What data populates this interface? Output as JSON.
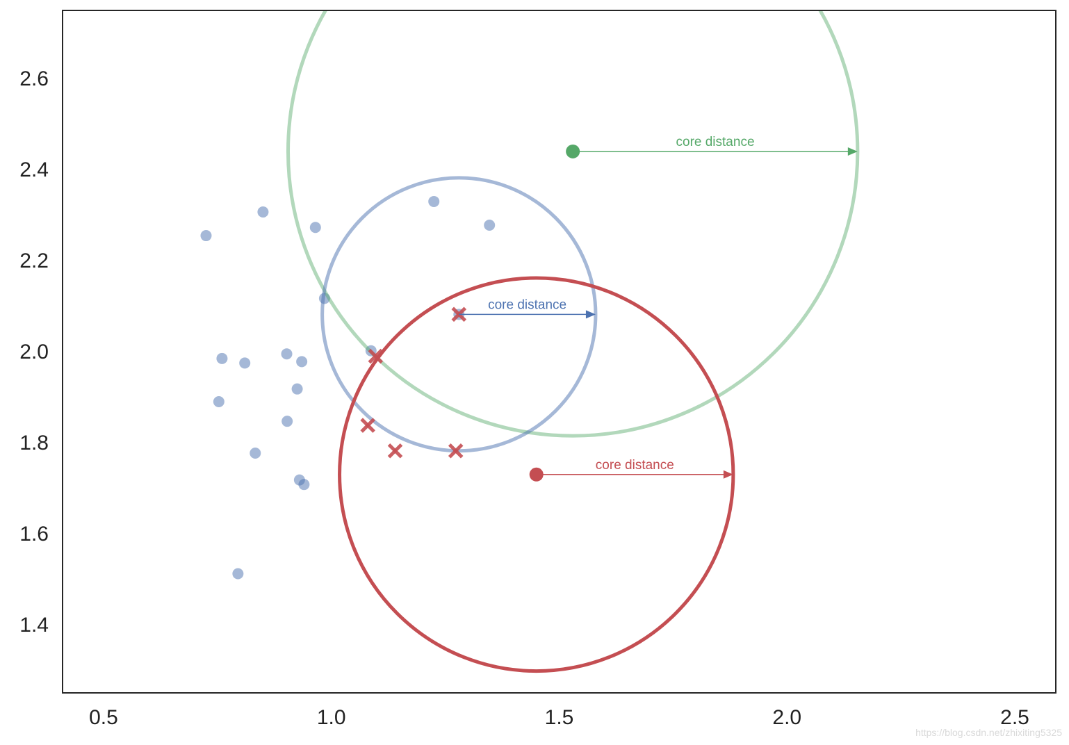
{
  "chart_data": {
    "type": "scatter",
    "title": "",
    "xlabel": "",
    "ylabel": "",
    "xlim": [
      0.41,
      2.59
    ],
    "ylim": [
      1.25,
      2.75
    ],
    "xticks": [
      0.5,
      1.0,
      1.5,
      2.0,
      2.5
    ],
    "yticks": [
      1.4,
      1.6,
      1.8,
      2.0,
      2.2,
      2.4,
      2.6
    ],
    "grid": false,
    "colors": {
      "blue": "#4c72b0",
      "green": "#55a868",
      "red": "#c44e52",
      "axis": "#262626"
    },
    "points": [
      {
        "x": 0.725,
        "y": 2.255
      },
      {
        "x": 0.85,
        "y": 2.307
      },
      {
        "x": 0.965,
        "y": 2.273
      },
      {
        "x": 1.225,
        "y": 2.33
      },
      {
        "x": 1.347,
        "y": 2.278
      },
      {
        "x": 0.985,
        "y": 2.117
      },
      {
        "x": 0.76,
        "y": 1.985
      },
      {
        "x": 0.81,
        "y": 1.975
      },
      {
        "x": 0.902,
        "y": 1.995
      },
      {
        "x": 0.935,
        "y": 1.978
      },
      {
        "x": 0.925,
        "y": 1.918
      },
      {
        "x": 1.087,
        "y": 2.002
      },
      {
        "x": 0.753,
        "y": 1.89
      },
      {
        "x": 0.903,
        "y": 1.847
      },
      {
        "x": 0.833,
        "y": 1.777
      },
      {
        "x": 0.93,
        "y": 1.718
      },
      {
        "x": 0.94,
        "y": 1.708
      },
      {
        "x": 0.795,
        "y": 1.512
      },
      {
        "x": 1.28,
        "y": 2.082
      }
    ],
    "crossed_points": [
      {
        "x": 1.28,
        "y": 2.082
      },
      {
        "x": 1.097,
        "y": 1.99
      },
      {
        "x": 1.08,
        "y": 1.838
      },
      {
        "x": 1.14,
        "y": 1.782
      },
      {
        "x": 1.273,
        "y": 1.782
      }
    ],
    "circles": [
      {
        "name": "green",
        "cx": 1.53,
        "cy": 2.44,
        "r": 0.625,
        "color": "green",
        "opacity": 0.45
      },
      {
        "name": "blue",
        "cx": 1.28,
        "cy": 2.082,
        "r": 0.3,
        "color": "blue",
        "opacity": 0.5
      },
      {
        "name": "red",
        "cx": 1.45,
        "cy": 1.73,
        "r": 0.432,
        "color": "red",
        "opacity": 1.0
      }
    ],
    "centers": [
      {
        "name": "green",
        "x": 1.53,
        "y": 2.44,
        "color": "green"
      },
      {
        "name": "red",
        "x": 1.45,
        "y": 1.73,
        "color": "red"
      }
    ],
    "annotations": [
      {
        "text": "core distance",
        "x1": 1.53,
        "x2": 2.155,
        "y": 2.44,
        "color": "green"
      },
      {
        "text": "core distance",
        "x1": 1.28,
        "x2": 1.58,
        "y": 2.082,
        "color": "blue"
      },
      {
        "text": "core distance",
        "x1": 1.45,
        "x2": 1.882,
        "y": 1.73,
        "color": "red"
      }
    ]
  },
  "watermark": "https://blog.csdn.net/zhixiting5325"
}
